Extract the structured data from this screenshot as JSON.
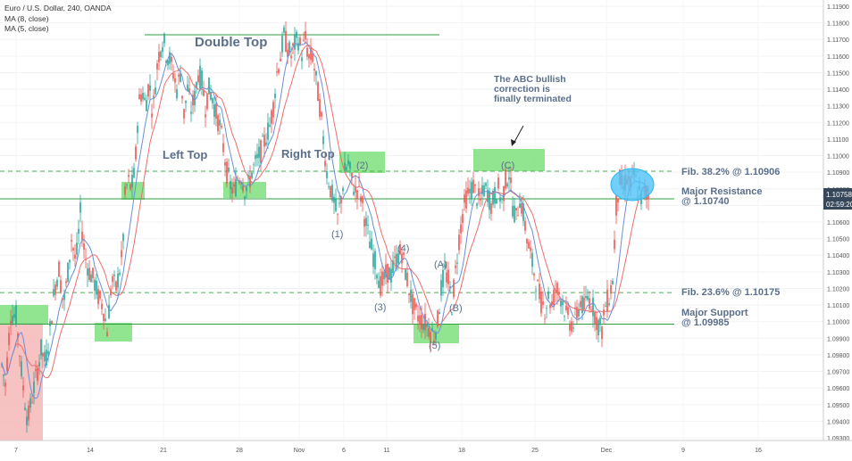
{
  "header": {
    "symbol_line": "Euro / U.S. Dollar, 240, OANDA",
    "ma_slow_label": "MA (8, close)",
    "ma_fast_label": "MA (5, close)"
  },
  "colors": {
    "up": "#26a69a",
    "down": "#ef5350",
    "ma8": "#ef6d6d",
    "ma5": "#6b8fd6",
    "level_line": "#2e9e3f",
    "fib_line": "#4caf50",
    "zone_fill": "#7ee07e",
    "annotation_text": "#5b6f8a",
    "highlight_fill": "#4fc3f7",
    "left_band_fill": "#f4b7b7",
    "price_tag_bg": "#36475a"
  },
  "chart_data": {
    "type": "candlestick",
    "x_axis": {
      "tick_labels": [
        "7",
        "14",
        "21",
        "28",
        "Nov",
        "6",
        "11",
        "18",
        "25",
        "Dec",
        "9",
        "16"
      ]
    },
    "y_axis": {
      "ylim": [
        1.0928,
        1.1195
      ],
      "tick_labels": [
        "1.11900",
        "1.11800",
        "1.11700",
        "1.11600",
        "1.11500",
        "1.11400",
        "1.11300",
        "1.11200",
        "1.11100",
        "1.11000",
        "1.10900",
        "1.10800",
        "1.10700",
        "1.10600",
        "1.10500",
        "1.10400",
        "1.10300",
        "1.10200",
        "1.10100",
        "1.10000",
        "1.09900",
        "1.09800",
        "1.09700",
        "1.09600",
        "1.09500",
        "1.09400",
        "1.09300"
      ],
      "tick_values": [
        1.119,
        1.118,
        1.117,
        1.116,
        1.115,
        1.114,
        1.113,
        1.112,
        1.111,
        1.11,
        1.109,
        1.108,
        1.107,
        1.106,
        1.105,
        1.104,
        1.103,
        1.102,
        1.101,
        1.1,
        1.099,
        1.098,
        1.097,
        1.096,
        1.095,
        1.094,
        1.093
      ]
    },
    "price_path": [
      [
        0,
        1.098
      ],
      [
        6,
        1.0962
      ],
      [
        12,
        1.1005
      ],
      [
        18,
        1.1003
      ],
      [
        26,
        1.096
      ],
      [
        31,
        1.094
      ],
      [
        36,
        1.0955
      ],
      [
        41,
        1.0968
      ],
      [
        46,
        1.0983
      ],
      [
        51,
        1.0975
      ],
      [
        56,
        1.0995
      ],
      [
        61,
        1.102
      ],
      [
        66,
        1.1032
      ],
      [
        71,
        1.101
      ],
      [
        75,
        1.1025
      ],
      [
        80,
        1.105
      ],
      [
        85,
        1.1035
      ],
      [
        90,
        1.1065
      ],
      [
        95,
        1.104
      ],
      [
        100,
        1.103
      ],
      [
        105,
        1.1025
      ],
      [
        110,
        1.1015
      ],
      [
        115,
        1.101
      ],
      [
        120,
        1.0995
      ],
      [
        125,
        1.1025
      ],
      [
        130,
        1.102
      ],
      [
        137,
        1.104
      ],
      [
        140,
        1.1075
      ],
      [
        143,
        1.1085
      ],
      [
        147,
        1.108
      ],
      [
        151,
        1.109
      ],
      [
        155,
        1.113
      ],
      [
        159,
        1.114
      ],
      [
        163,
        1.113
      ],
      [
        167,
        1.1145
      ],
      [
        171,
        1.1125
      ],
      [
        175,
        1.115
      ],
      [
        179,
        1.1165
      ],
      [
        183,
        1.117
      ],
      [
        186,
        1.1162
      ],
      [
        190,
        1.1158
      ],
      [
        194,
        1.115
      ],
      [
        198,
        1.114
      ],
      [
        202,
        1.115
      ],
      [
        206,
        1.1125
      ],
      [
        210,
        1.114
      ],
      [
        214,
        1.1128
      ],
      [
        218,
        1.1135
      ],
      [
        222,
        1.115
      ],
      [
        226,
        1.1145
      ],
      [
        230,
        1.113
      ],
      [
        234,
        1.114
      ],
      [
        238,
        1.1135
      ],
      [
        242,
        1.1125
      ],
      [
        246,
        1.1118
      ],
      [
        250,
        1.1105
      ],
      [
        254,
        1.109
      ],
      [
        258,
        1.1082
      ],
      [
        262,
        1.1078
      ],
      [
        266,
        1.1086
      ],
      [
        270,
        1.1088
      ],
      [
        274,
        1.108
      ],
      [
        278,
        1.1082
      ],
      [
        282,
        1.109
      ],
      [
        286,
        1.1095
      ],
      [
        290,
        1.11
      ],
      [
        294,
        1.1105
      ],
      [
        298,
        1.1112
      ],
      [
        302,
        1.1118
      ],
      [
        306,
        1.113
      ],
      [
        310,
        1.115
      ],
      [
        314,
        1.116
      ],
      [
        318,
        1.1172
      ],
      [
        322,
        1.1165
      ],
      [
        326,
        1.116
      ],
      [
        330,
        1.1167
      ],
      [
        334,
        1.117
      ],
      [
        338,
        1.1162
      ],
      [
        342,
        1.117
      ],
      [
        346,
        1.1158
      ],
      [
        350,
        1.116
      ],
      [
        354,
        1.1145
      ],
      [
        358,
        1.113
      ],
      [
        362,
        1.111
      ],
      [
        366,
        1.109
      ],
      [
        370,
        1.108
      ],
      [
        374,
        1.1072
      ],
      [
        378,
        1.1062
      ],
      [
        382,
        1.1075
      ],
      [
        386,
        1.109
      ],
      [
        390,
        1.1095
      ],
      [
        394,
        1.1085
      ],
      [
        398,
        1.1078
      ],
      [
        402,
        1.1082
      ],
      [
        406,
        1.107
      ],
      [
        410,
        1.1058
      ],
      [
        414,
        1.1048
      ],
      [
        418,
        1.104
      ],
      [
        422,
        1.1032
      ],
      [
        426,
        1.1022
      ],
      [
        430,
        1.1025
      ],
      [
        434,
        1.103
      ],
      [
        438,
        1.1028
      ],
      [
        442,
        1.1035
      ],
      [
        446,
        1.104
      ],
      [
        450,
        1.1042
      ],
      [
        454,
        1.103
      ],
      [
        458,
        1.102
      ],
      [
        462,
        1.101
      ],
      [
        466,
        1.1005
      ],
      [
        470,
        1.1002
      ],
      [
        474,
        1.1
      ],
      [
        478,
        1.0998
      ],
      [
        482,
        1.0994
      ],
      [
        486,
        1.0992
      ],
      [
        490,
        1.1
      ],
      [
        494,
        1.102
      ],
      [
        498,
        1.103
      ],
      [
        502,
        1.1025
      ],
      [
        506,
        1.101
      ],
      [
        510,
        1.103
      ],
      [
        514,
        1.105
      ],
      [
        518,
        1.1065
      ],
      [
        522,
        1.1075
      ],
      [
        526,
        1.1078
      ],
      [
        530,
        1.1082
      ],
      [
        534,
        1.1075
      ],
      [
        538,
        1.1072
      ],
      [
        542,
        1.108
      ],
      [
        546,
        1.1078
      ],
      [
        550,
        1.107
      ],
      [
        554,
        1.1076
      ],
      [
        558,
        1.108
      ],
      [
        562,
        1.1072
      ],
      [
        566,
        1.1085
      ],
      [
        570,
        1.109
      ],
      [
        574,
        1.107
      ],
      [
        578,
        1.1062
      ],
      [
        582,
        1.1075
      ],
      [
        586,
        1.1065
      ],
      [
        590,
        1.105
      ],
      [
        594,
        1.104
      ],
      [
        598,
        1.103
      ],
      [
        602,
        1.102
      ],
      [
        606,
        1.1012
      ],
      [
        610,
        1.1008
      ],
      [
        614,
        1.1015
      ],
      [
        618,
        1.101
      ],
      [
        622,
        1.102
      ],
      [
        626,
        1.1018
      ],
      [
        630,
        1.1012
      ],
      [
        634,
        1.1004
      ],
      [
        638,
        1.1
      ],
      [
        642,
        1.0998
      ],
      [
        646,
        1.1005
      ],
      [
        650,
        1.1012
      ],
      [
        654,
        1.1008
      ],
      [
        658,
        1.1015
      ],
      [
        662,
        1.1012
      ],
      [
        666,
        1.1005
      ],
      [
        670,
        1.0998
      ],
      [
        674,
        1.0995
      ],
      [
        678,
        1.101
      ],
      [
        682,
        1.1015
      ],
      [
        686,
        1.1025
      ],
      [
        690,
        1.107
      ],
      [
        694,
        1.1085
      ],
      [
        698,
        1.108
      ],
      [
        702,
        1.1087
      ],
      [
        706,
        1.1082
      ],
      [
        710,
        1.1088
      ],
      [
        714,
        1.108
      ],
      [
        718,
        1.1075
      ],
      [
        722,
        1.1078
      ],
      [
        726,
        1.1076
      ]
    ],
    "levels": [
      {
        "name": "Double Top line",
        "value": 1.11728,
        "style": "solid"
      },
      {
        "name": "Fib. 38.2%",
        "value": 1.10906,
        "style": "dashed"
      },
      {
        "name": "Major Resistance",
        "value": 1.1074,
        "style": "solid"
      },
      {
        "name": "Fib. 23.6%",
        "value": 1.10175,
        "style": "dashed"
      },
      {
        "name": "Major Support",
        "value": 1.09985,
        "style": "solid"
      }
    ],
    "current_price": {
      "value": "1.10758",
      "countdown": "02:59:20"
    }
  },
  "annotations": {
    "double_top": "Double Top",
    "left_top": "Left Top",
    "right_top": "Right Top",
    "abc_note_l1": "The ABC bullish",
    "abc_note_l2": "correction is",
    "abc_note_l3": "finally terminated",
    "wave_1": "(1)",
    "wave_2": "(2)",
    "wave_3": "(3)",
    "wave_4": "(4)",
    "wave_5": "(5)",
    "wave_a": "(A)",
    "wave_b": "(B)",
    "wave_c": "(C)",
    "fib382_label": "Fib. 38.2% @ 1.10906",
    "resistance_l1": "Major Resistance",
    "resistance_l2": "@ 1.10740",
    "fib236_label": "Fib. 23.6% @ 1.10175",
    "support_l1": "Major Support",
    "support_l2": "@ 1.09985"
  }
}
